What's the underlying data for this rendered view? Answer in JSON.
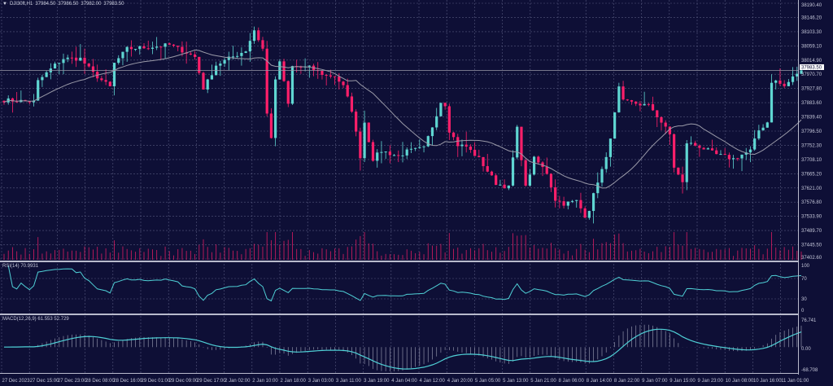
{
  "header": {
    "symbol": "DJI30ft,H1",
    "open": "37984.50",
    "high": "37986.50",
    "low": "37982.00",
    "close": "37983.50"
  },
  "rsi": {
    "label": "RSI(14)",
    "value": "70.9931",
    "levels": [
      "100",
      "70",
      "30",
      "0"
    ]
  },
  "macd": {
    "label": "MACD(12,26,9)",
    "main": "61.553",
    "signal": "52.729",
    "levels": [
      "76.741",
      "0.00",
      "-68.708"
    ]
  },
  "colors": {
    "background": "#0e0f36",
    "bull": "#5fd6d2",
    "bear": "#ff1f6a",
    "grid": "#55587e",
    "ma": "#9a9aa8",
    "indicator": "#4fd0d6"
  },
  "chart_data": {
    "type": "candlestick",
    "timeframe": "H1",
    "current_price": "37983.50",
    "price_axis": [
      "38190.40",
      "38146.20",
      "38103.30",
      "38059.10",
      "38014.90",
      "37970.70",
      "37927.80",
      "37883.60",
      "37839.40",
      "37796.50",
      "37752.30",
      "37708.10",
      "37665.20",
      "37621.00",
      "37576.80",
      "37533.90",
      "37489.70",
      "37445.50",
      "37402.60"
    ],
    "ylim": [
      37402.6,
      38190.4
    ],
    "time_axis": [
      "27 Dec 2023",
      "27 Dec 15:00",
      "27 Dec 23:00",
      "28 Dec 08:00",
      "28 Dec 16:00",
      "29 Dec 01:00",
      "29 Dec 09:00",
      "29 Dec 17:00",
      "2 Jan 02:00",
      "2 Jan 10:00",
      "2 Jan 18:00",
      "3 Jan 03:00",
      "3 Jan 11:00",
      "3 Jan 19:00",
      "4 Jan 04:00",
      "4 Jan 12:00",
      "4 Jan 20:00",
      "5 Jan 05:00",
      "5 Jan 13:00",
      "5 Jan 21:00",
      "8 Jan 06:00",
      "8 Jan 14:00",
      "8 Jan 22:00",
      "9 Jan 07:00",
      "9 Jan 15:00",
      "9 Jan 23:00",
      "10 Jan 08:00",
      "10 Jan 16:00",
      "11 Jan 01:00"
    ],
    "bars": 189,
    "close_keypoints": [
      [
        0,
        37892
      ],
      [
        7,
        37887
      ],
      [
        8,
        37950
      ],
      [
        12,
        38000
      ],
      [
        14,
        38020
      ],
      [
        18,
        38020
      ],
      [
        21,
        37975
      ],
      [
        25,
        37932
      ],
      [
        26,
        38005
      ],
      [
        29,
        38050
      ],
      [
        34,
        38055
      ],
      [
        39,
        38062
      ],
      [
        42,
        38045
      ],
      [
        45,
        38025
      ],
      [
        47,
        37929
      ],
      [
        48,
        37950
      ],
      [
        50,
        38000
      ],
      [
        53,
        38020
      ],
      [
        57,
        38045
      ],
      [
        59,
        38108
      ],
      [
        61,
        38050
      ],
      [
        62,
        37849
      ],
      [
        63,
        37779
      ],
      [
        64,
        37950
      ],
      [
        65,
        38012
      ],
      [
        67,
        37879
      ],
      [
        68,
        37995
      ],
      [
        72,
        37992
      ],
      [
        76,
        37967
      ],
      [
        78,
        37967
      ],
      [
        80,
        37934
      ],
      [
        82,
        37862
      ],
      [
        84,
        37719
      ],
      [
        85,
        37824
      ],
      [
        87,
        37711
      ],
      [
        89,
        37736
      ],
      [
        93,
        37719
      ],
      [
        95,
        37734
      ],
      [
        99,
        37744
      ],
      [
        101,
        37811
      ],
      [
        103,
        37887
      ],
      [
        104,
        37879
      ],
      [
        105,
        37799
      ],
      [
        107,
        37754
      ],
      [
        109,
        37749
      ],
      [
        112,
        37711
      ],
      [
        116,
        37636
      ],
      [
        119,
        37623
      ],
      [
        121,
        37804
      ],
      [
        123,
        37623
      ],
      [
        125,
        37711
      ],
      [
        126,
        37699
      ],
      [
        128,
        37668
      ],
      [
        130,
        37586
      ],
      [
        132,
        37573
      ],
      [
        135,
        37581
      ],
      [
        137,
        37536
      ],
      [
        138,
        37556
      ],
      [
        140,
        37643
      ],
      [
        142,
        37711
      ],
      [
        144,
        37849
      ],
      [
        145,
        37929
      ],
      [
        146,
        37887
      ],
      [
        149,
        37882
      ],
      [
        152,
        37874
      ],
      [
        153,
        37862
      ],
      [
        155,
        37824
      ],
      [
        157,
        37786
      ],
      [
        158,
        37686
      ],
      [
        160,
        37636
      ],
      [
        161,
        37761
      ],
      [
        164,
        37749
      ],
      [
        168,
        37724
      ],
      [
        172,
        37711
      ],
      [
        174,
        37724
      ],
      [
        176,
        37736
      ],
      [
        178,
        37799
      ],
      [
        180,
        37824
      ],
      [
        181,
        37950
      ],
      [
        182,
        37950
      ],
      [
        184,
        37934
      ],
      [
        187,
        37975
      ],
      [
        188,
        37983.5
      ]
    ],
    "indicators": [
      "MA(20)",
      "Volume",
      "RSI(14)",
      "MACD(12,26,9)"
    ]
  }
}
